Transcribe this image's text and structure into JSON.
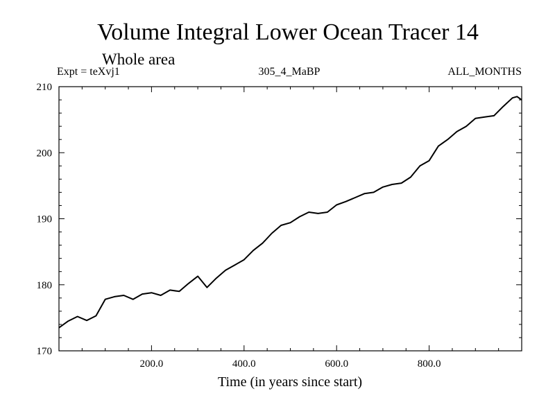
{
  "chart_data": {
    "type": "line",
    "title": "Volume Integral Lower Ocean Tracer 14",
    "subtitle": "Whole area",
    "experiment": "Expt = teXvj1",
    "run_id": "305_4_MaBP",
    "period": "ALL_MONTHS",
    "xlabel": "Time (in years since start)",
    "ylabel": "",
    "xlim": [
      0,
      1000
    ],
    "ylim": [
      170,
      210
    ],
    "x_ticks": [
      200,
      400,
      600,
      800
    ],
    "x_tick_labels": [
      "200.0",
      "400.0",
      "600.0",
      "800.0"
    ],
    "y_ticks": [
      170,
      180,
      190,
      200,
      210
    ],
    "y_tick_labels": [
      "170",
      "180",
      "190",
      "200",
      "210"
    ],
    "grid": false,
    "series": [
      {
        "name": "Lower Ocean Tracer 14",
        "color": "#000000",
        "x": [
          0,
          20,
          40,
          60,
          80,
          100,
          120,
          140,
          160,
          180,
          200,
          220,
          240,
          260,
          280,
          300,
          320,
          340,
          360,
          380,
          400,
          420,
          440,
          460,
          480,
          500,
          520,
          540,
          560,
          580,
          600,
          620,
          640,
          660,
          680,
          700,
          720,
          740,
          760,
          780,
          800,
          820,
          840,
          860,
          880,
          900,
          920,
          940,
          960,
          980,
          990,
          1000
        ],
        "values": [
          173.5,
          174.5,
          175.2,
          174.6,
          175.3,
          177.8,
          178.2,
          178.4,
          177.8,
          178.6,
          178.8,
          178.4,
          179.2,
          179.0,
          180.2,
          181.3,
          179.6,
          181.0,
          182.2,
          183.0,
          183.8,
          185.2,
          186.3,
          187.8,
          189.0,
          189.4,
          190.3,
          191.0,
          190.8,
          191.0,
          192.1,
          192.6,
          193.2,
          193.8,
          194.0,
          194.8,
          195.2,
          195.4,
          196.3,
          198.0,
          198.8,
          201.0,
          202.0,
          203.2,
          204.0,
          205.2,
          205.4,
          205.6,
          207.0,
          208.3,
          208.5,
          208.0
        ]
      }
    ]
  }
}
